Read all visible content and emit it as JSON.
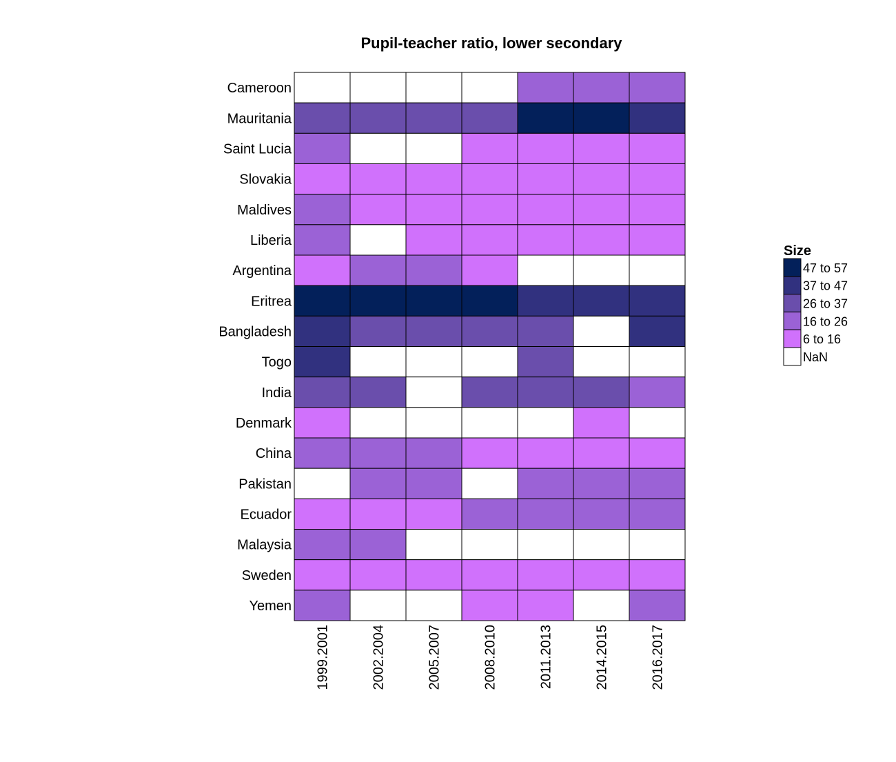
{
  "chart_data": {
    "type": "heatmap",
    "title": "Pupil-teacher ratio, lower secondary",
    "x_categories": [
      "1999.2001",
      "2002.2004",
      "2005.2007",
      "2008.2010",
      "2011.2013",
      "2014.2015",
      "2016.2017"
    ],
    "y_categories": [
      "Cameroon",
      "Mauritania",
      "Saint Lucia",
      "Slovakia",
      "Maldives",
      "Liberia",
      "Argentina",
      "Eritrea",
      "Bangladesh",
      "Togo",
      "India",
      "Denmark",
      "China",
      "Pakistan",
      "Ecuador",
      "Malaysia",
      "Sweden",
      "Yemen"
    ],
    "bins": [
      "47 to 57",
      "37 to 47",
      "26 to 37",
      "16 to 26",
      "6 to 16",
      "NaN"
    ],
    "cell_bins": [
      [
        "NaN",
        "NaN",
        "NaN",
        "NaN",
        "16 to 26",
        "16 to 26",
        "16 to 26"
      ],
      [
        "26 to 37",
        "26 to 37",
        "26 to 37",
        "26 to 37",
        "47 to 57",
        "47 to 57",
        "37 to 47"
      ],
      [
        "16 to 26",
        "NaN",
        "NaN",
        "6 to 16",
        "6 to 16",
        "6 to 16",
        "6 to 16"
      ],
      [
        "6 to 16",
        "6 to 16",
        "6 to 16",
        "6 to 16",
        "6 to 16",
        "6 to 16",
        "6 to 16"
      ],
      [
        "16 to 26",
        "6 to 16",
        "6 to 16",
        "6 to 16",
        "6 to 16",
        "6 to 16",
        "6 to 16"
      ],
      [
        "16 to 26",
        "NaN",
        "6 to 16",
        "6 to 16",
        "6 to 16",
        "6 to 16",
        "6 to 16"
      ],
      [
        "6 to 16",
        "16 to 26",
        "16 to 26",
        "6 to 16",
        "NaN",
        "NaN",
        "NaN"
      ],
      [
        "47 to 57",
        "47 to 57",
        "47 to 57",
        "47 to 57",
        "37 to 47",
        "37 to 47",
        "37 to 47"
      ],
      [
        "37 to 47",
        "26 to 37",
        "26 to 37",
        "26 to 37",
        "26 to 37",
        "NaN",
        "37 to 47"
      ],
      [
        "37 to 47",
        "NaN",
        "NaN",
        "NaN",
        "26 to 37",
        "NaN",
        "NaN"
      ],
      [
        "26 to 37",
        "26 to 37",
        "NaN",
        "26 to 37",
        "26 to 37",
        "26 to 37",
        "16 to 26"
      ],
      [
        "6 to 16",
        "NaN",
        "NaN",
        "NaN",
        "NaN",
        "6 to 16",
        "NaN"
      ],
      [
        "16 to 26",
        "16 to 26",
        "16 to 26",
        "6 to 16",
        "6 to 16",
        "6 to 16",
        "6 to 16"
      ],
      [
        "NaN",
        "16 to 26",
        "16 to 26",
        "NaN",
        "16 to 26",
        "16 to 26",
        "16 to 26"
      ],
      [
        "6 to 16",
        "6 to 16",
        "6 to 16",
        "16 to 26",
        "16 to 26",
        "16 to 26",
        "16 to 26"
      ],
      [
        "16 to 26",
        "16 to 26",
        "NaN",
        "NaN",
        "NaN",
        "NaN",
        "NaN"
      ],
      [
        "6 to 16",
        "6 to 16",
        "6 to 16",
        "6 to 16",
        "6 to 16",
        "6 to 16",
        "6 to 16"
      ],
      [
        "16 to 26",
        "NaN",
        "NaN",
        "6 to 16",
        "6 to 16",
        "NaN",
        "16 to 26"
      ]
    ],
    "legend": {
      "title": "Size",
      "placement": "right"
    },
    "colors": {
      "47 to 57": "#03205a",
      "37 to 47": "#31317f",
      "26 to 37": "#6a4eac",
      "16 to 26": "#9b62d6",
      "6 to 16": "#d071fc",
      "NaN": "#ffffff"
    }
  }
}
